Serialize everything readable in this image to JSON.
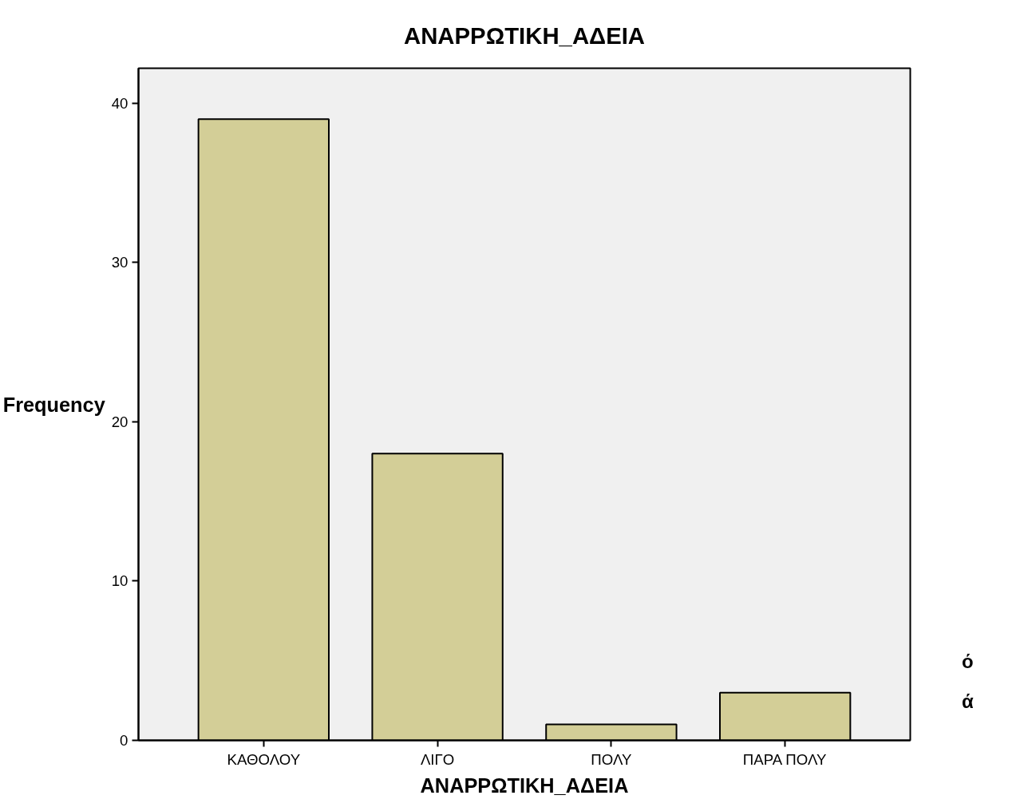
{
  "chart_data": {
    "type": "bar",
    "title": "ΑΝΑΡΡΩΤΙΚΗ_ΑΔΕΙΑ",
    "xlabel": "ΑΝΑΡΡΩΤΙΚΗ_ΑΔΕΙΑ",
    "ylabel": "Frequency",
    "categories": [
      "ΚΑΘΟΛΟΥ",
      "ΛΙΓΟ",
      "ΠΟΛΥ",
      "ΠΑΡΑ ΠΟΛΥ"
    ],
    "values": [
      39,
      18,
      1,
      3
    ],
    "color": "#d3ce97",
    "ylim": [
      0,
      42.2
    ],
    "yticks": [
      0,
      10,
      20,
      30,
      40
    ],
    "grid": false,
    "annotations": [
      "ό",
      "ά"
    ]
  }
}
